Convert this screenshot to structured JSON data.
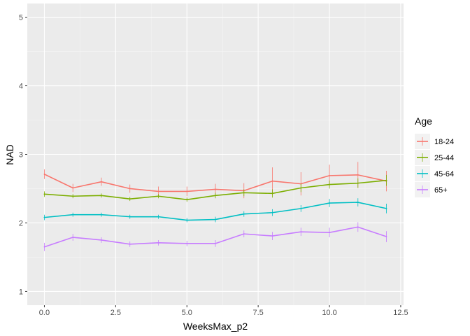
{
  "chart_data": {
    "type": "line",
    "title": "",
    "xlabel": "WeeksMax_p2",
    "ylabel": "NAD",
    "xlim": [
      -0.6,
      12.6
    ],
    "ylim": [
      0.8,
      5.2
    ],
    "x_ticks": [
      0,
      2.5,
      5,
      7.5,
      10,
      12.5
    ],
    "x_tick_labels": [
      "0.0",
      "2.5",
      "5.0",
      "7.5",
      "10.0",
      "12.5"
    ],
    "y_ticks": [
      1,
      2,
      3,
      4,
      5
    ],
    "y_tick_labels": [
      "1",
      "2",
      "3",
      "4",
      "5"
    ],
    "grid": true,
    "legend": {
      "title": "Age",
      "placement": "right"
    },
    "x": [
      0,
      1,
      2,
      3,
      4,
      5,
      6,
      7,
      8,
      9,
      10,
      11,
      12
    ],
    "series": [
      {
        "name": "18-24",
        "color": "#F8766D",
        "values": [
          2.71,
          2.51,
          2.6,
          2.5,
          2.46,
          2.46,
          2.49,
          2.47,
          2.61,
          2.57,
          2.69,
          2.7,
          2.61
        ],
        "err": [
          0.07,
          0.06,
          0.06,
          0.06,
          0.07,
          0.07,
          0.08,
          0.11,
          0.2,
          0.17,
          0.16,
          0.19,
          0.15
        ]
      },
      {
        "name": "25-44",
        "color": "#7CAE00",
        "values": [
          2.42,
          2.39,
          2.4,
          2.35,
          2.39,
          2.34,
          2.4,
          2.44,
          2.43,
          2.51,
          2.56,
          2.58,
          2.62
        ],
        "err": [
          0.04,
          0.03,
          0.03,
          0.03,
          0.03,
          0.03,
          0.04,
          0.05,
          0.06,
          0.06,
          0.06,
          0.07,
          0.08
        ]
      },
      {
        "name": "45-64",
        "color": "#00BFC4",
        "values": [
          2.08,
          2.12,
          2.12,
          2.09,
          2.09,
          2.04,
          2.05,
          2.13,
          2.15,
          2.21,
          2.29,
          2.3,
          2.21
        ],
        "err": [
          0.04,
          0.03,
          0.03,
          0.03,
          0.03,
          0.03,
          0.04,
          0.04,
          0.05,
          0.05,
          0.06,
          0.06,
          0.07
        ]
      },
      {
        "name": "65+",
        "color": "#C77CFF",
        "values": [
          1.65,
          1.79,
          1.75,
          1.69,
          1.71,
          1.7,
          1.7,
          1.84,
          1.81,
          1.87,
          1.86,
          1.94,
          1.8
        ],
        "err": [
          0.06,
          0.05,
          0.04,
          0.04,
          0.04,
          0.04,
          0.05,
          0.05,
          0.06,
          0.06,
          0.07,
          0.07,
          0.08
        ]
      }
    ]
  }
}
